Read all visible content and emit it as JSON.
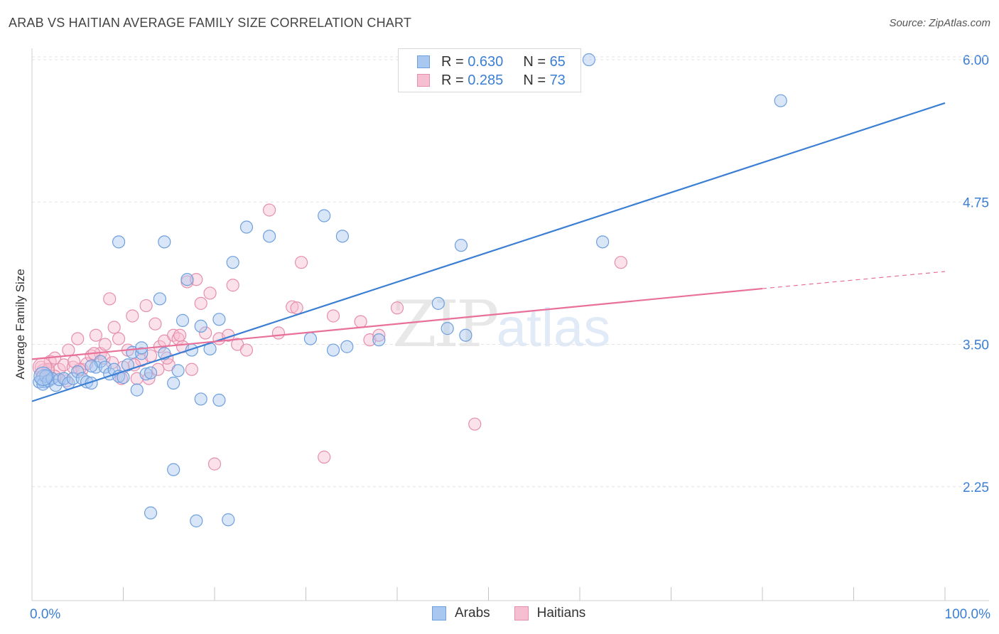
{
  "header": {
    "title": "ARAB VS HAITIAN AVERAGE FAMILY SIZE CORRELATION CHART",
    "source": "Source: ZipAtlas.com"
  },
  "legend": {
    "rows": [
      {
        "r_label": "R =",
        "r_value": "0.630",
        "n_label": "N =",
        "n_value": "65",
        "color": "#a9c8f0",
        "border": "#6f9fdc"
      },
      {
        "r_label": "R =",
        "r_value": "0.285",
        "n_label": "N =",
        "n_value": "73",
        "color": "#f6bfd1",
        "border": "#e58fae"
      }
    ]
  },
  "bottom_legend": {
    "items": [
      {
        "label": "Arabs",
        "color": "#a9c8f0",
        "border": "#6f9fdc"
      },
      {
        "label": "Haitians",
        "color": "#f6bfd1",
        "border": "#e58fae"
      }
    ]
  },
  "watermark": {
    "zip": "ZIP",
    "atlas": "atlas"
  },
  "chart_data": {
    "type": "scatter",
    "title": "ARAB VS HAITIAN AVERAGE FAMILY SIZE CORRELATION CHART",
    "xlabel": "",
    "ylabel": "Average Family Size",
    "xlim": [
      0,
      100
    ],
    "ylim": [
      1.25,
      6.1
    ],
    "x_tick_labels": [
      {
        "value": 0,
        "label": "0.0%"
      },
      {
        "value": 100,
        "label": "100.0%"
      }
    ],
    "y_ticks": [
      {
        "value": 2.25,
        "label": "2.25"
      },
      {
        "value": 3.5,
        "label": "3.50"
      },
      {
        "value": 4.75,
        "label": "4.75"
      },
      {
        "value": 6.0,
        "label": "6.00"
      }
    ],
    "colors": {
      "arabs": "#3b7fd4",
      "haitians": "#e8709a",
      "arabs_fill": "#a9c8f0",
      "haitians_fill": "#f6bfd1"
    },
    "series": [
      {
        "name": "Arabs",
        "trend": {
          "x0": 0,
          "y0": 3.0,
          "x1": 100,
          "y1": 5.62
        },
        "points": [
          [
            0.5,
            3.2
          ],
          [
            0.8,
            3.17
          ],
          [
            1.2,
            3.15
          ],
          [
            1.5,
            3.22
          ],
          [
            1.8,
            3.18
          ],
          [
            2.2,
            3.2
          ],
          [
            2.6,
            3.14
          ],
          [
            3.0,
            3.19
          ],
          [
            3.5,
            3.2
          ],
          [
            4.0,
            3.16
          ],
          [
            4.5,
            3.2
          ],
          [
            5.0,
            3.26
          ],
          [
            5.5,
            3.2
          ],
          [
            6.0,
            3.17
          ],
          [
            6.5,
            3.16
          ],
          [
            7.0,
            3.3
          ],
          [
            7.5,
            3.35
          ],
          [
            8.0,
            3.3
          ],
          [
            8.5,
            3.24
          ],
          [
            9.0,
            3.28
          ],
          [
            9.5,
            3.22
          ],
          [
            10.0,
            3.21
          ],
          [
            10.5,
            3.32
          ],
          [
            11.0,
            3.43
          ],
          [
            11.5,
            3.1
          ],
          [
            12.0,
            3.42
          ],
          [
            12.5,
            3.24
          ],
          [
            13.0,
            3.25
          ],
          [
            14.0,
            3.9
          ],
          [
            14.5,
            3.42
          ],
          [
            15.5,
            3.16
          ],
          [
            16.0,
            3.27
          ],
          [
            16.5,
            3.71
          ],
          [
            17.0,
            4.07
          ],
          [
            17.5,
            3.45
          ],
          [
            18.5,
            3.66
          ],
          [
            19.5,
            3.46
          ],
          [
            20.5,
            3.72
          ],
          [
            22.0,
            4.22
          ],
          [
            9.5,
            4.4
          ],
          [
            14.5,
            4.4
          ],
          [
            23.5,
            4.53
          ],
          [
            26.0,
            4.45
          ],
          [
            30.5,
            3.55
          ],
          [
            32.0,
            4.63
          ],
          [
            33.0,
            3.45
          ],
          [
            34.5,
            3.48
          ],
          [
            34.0,
            4.45
          ],
          [
            38.0,
            3.54
          ],
          [
            44.5,
            3.86
          ],
          [
            45.5,
            3.64
          ],
          [
            47.5,
            3.58
          ],
          [
            47.0,
            4.37
          ],
          [
            62.5,
            4.4
          ],
          [
            61.0,
            6.0
          ],
          [
            82.0,
            5.64
          ],
          [
            18.5,
            3.02
          ],
          [
            20.5,
            3.01
          ],
          [
            15.5,
            2.4
          ],
          [
            13.0,
            2.02
          ],
          [
            18.0,
            1.95
          ],
          [
            21.5,
            1.96
          ],
          [
            12.0,
            3.47
          ],
          [
            6.5,
            3.31
          ],
          [
            0.3,
            3.22
          ]
        ]
      },
      {
        "name": "Haitians",
        "trend": {
          "x0": 0,
          "y0": 3.37,
          "x1": 80,
          "y1": 3.99
        },
        "trend_dashed": {
          "x0": 80,
          "y0": 3.99,
          "x1": 100,
          "y1": 4.14
        },
        "points": [
          [
            0.5,
            3.25
          ],
          [
            1.0,
            3.3
          ],
          [
            1.5,
            3.22
          ],
          [
            2.0,
            3.35
          ],
          [
            2.5,
            3.38
          ],
          [
            3.0,
            3.28
          ],
          [
            3.5,
            3.32
          ],
          [
            4.0,
            3.45
          ],
          [
            4.5,
            3.3
          ],
          [
            5.0,
            3.55
          ],
          [
            5.5,
            3.28
          ],
          [
            6.0,
            3.33
          ],
          [
            6.5,
            3.4
          ],
          [
            7.0,
            3.58
          ],
          [
            7.5,
            3.42
          ],
          [
            8.0,
            3.5
          ],
          [
            8.5,
            3.9
          ],
          [
            9.0,
            3.65
          ],
          [
            9.5,
            3.55
          ],
          [
            10.0,
            3.3
          ],
          [
            10.5,
            3.45
          ],
          [
            11.0,
            3.75
          ],
          [
            11.5,
            3.2
          ],
          [
            12.0,
            3.36
          ],
          [
            12.5,
            3.84
          ],
          [
            13.0,
            3.4
          ],
          [
            13.5,
            3.68
          ],
          [
            14.0,
            3.48
          ],
          [
            14.5,
            3.53
          ],
          [
            15.0,
            3.32
          ],
          [
            15.5,
            3.58
          ],
          [
            16.0,
            3.55
          ],
          [
            16.5,
            3.48
          ],
          [
            17.0,
            4.05
          ],
          [
            17.5,
            3.28
          ],
          [
            18.0,
            4.07
          ],
          [
            18.5,
            3.86
          ],
          [
            19.0,
            3.6
          ],
          [
            19.5,
            3.95
          ],
          [
            20.5,
            3.55
          ],
          [
            21.5,
            3.58
          ],
          [
            22.0,
            4.02
          ],
          [
            22.5,
            3.5
          ],
          [
            23.5,
            3.45
          ],
          [
            26.0,
            4.68
          ],
          [
            27.0,
            3.6
          ],
          [
            28.5,
            3.83
          ],
          [
            29.0,
            3.82
          ],
          [
            29.5,
            4.22
          ],
          [
            33.0,
            3.75
          ],
          [
            36.0,
            3.7
          ],
          [
            37.0,
            3.54
          ],
          [
            38.0,
            3.58
          ],
          [
            40.0,
            3.82
          ],
          [
            48.5,
            2.8
          ],
          [
            64.5,
            4.22
          ],
          [
            20.0,
            2.45
          ],
          [
            32.0,
            2.51
          ],
          [
            2.5,
            3.22
          ],
          [
            3.8,
            3.18
          ],
          [
            6.8,
            3.42
          ],
          [
            9.8,
            3.2
          ],
          [
            13.8,
            3.28
          ],
          [
            16.2,
            3.58
          ],
          [
            11.2,
            3.32
          ],
          [
            7.9,
            3.38
          ],
          [
            5.2,
            3.28
          ],
          [
            12.8,
            3.2
          ],
          [
            8.8,
            3.34
          ],
          [
            14.8,
            3.38
          ],
          [
            1.8,
            3.28
          ],
          [
            4.6,
            3.35
          ],
          [
            0.2,
            3.3
          ]
        ]
      }
    ]
  }
}
